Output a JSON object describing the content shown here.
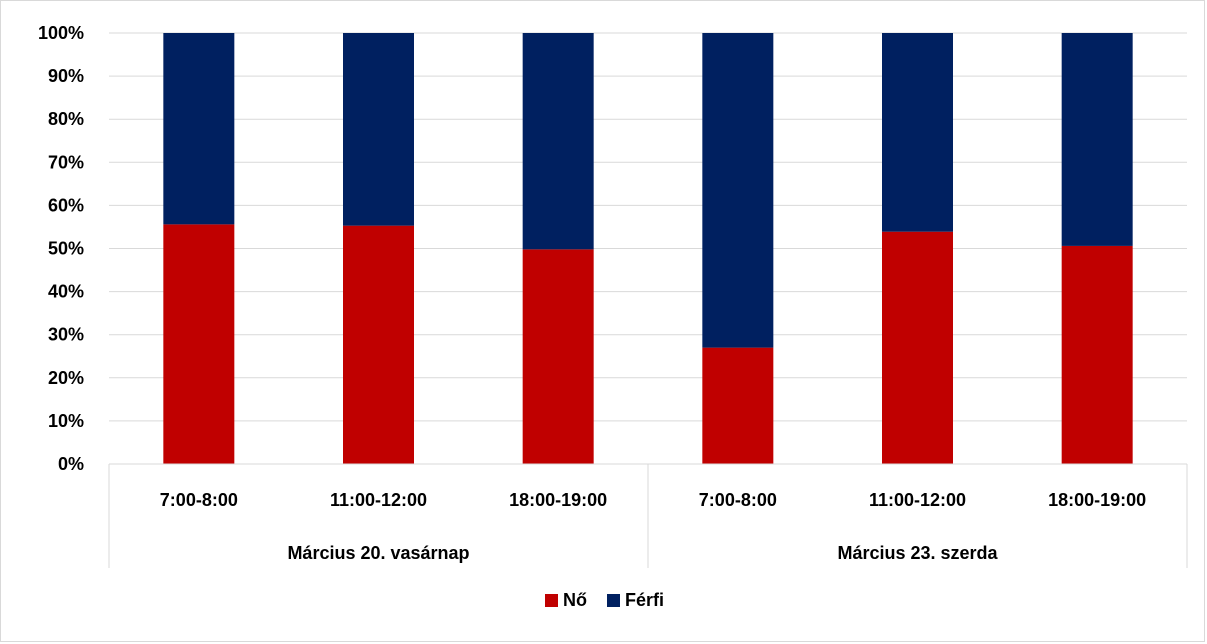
{
  "chart_data": {
    "type": "bar",
    "stacked": true,
    "percent_stacked": true,
    "y_tick_labels": [
      "0%",
      "10%",
      "20%",
      "30%",
      "40%",
      "50%",
      "60%",
      "70%",
      "80%",
      "90%",
      "100%"
    ],
    "ylim": [
      0,
      100
    ],
    "grid": true,
    "legend_position": "bottom",
    "groups": [
      {
        "label": "Március 20. vasárnap",
        "categories": [
          "7:00-8:00",
          "11:00-12:00",
          "18:00-19:00"
        ]
      },
      {
        "label": "Március 23. szerda",
        "categories": [
          "7:00-8:00",
          "11:00-12:00",
          "18:00-19:00"
        ]
      }
    ],
    "categories": [
      "7:00-8:00",
      "11:00-12:00",
      "18:00-19:00",
      "7:00-8:00",
      "11:00-12:00",
      "18:00-19:00"
    ],
    "series": [
      {
        "name": "Nő",
        "color": "#c00000",
        "values": [
          55.6,
          55.3,
          49.8,
          27.0,
          53.9,
          50.6
        ]
      },
      {
        "name": "Férfi",
        "color": "#002060",
        "values": [
          44.4,
          44.7,
          50.2,
          73.0,
          46.1,
          49.4
        ]
      }
    ]
  }
}
